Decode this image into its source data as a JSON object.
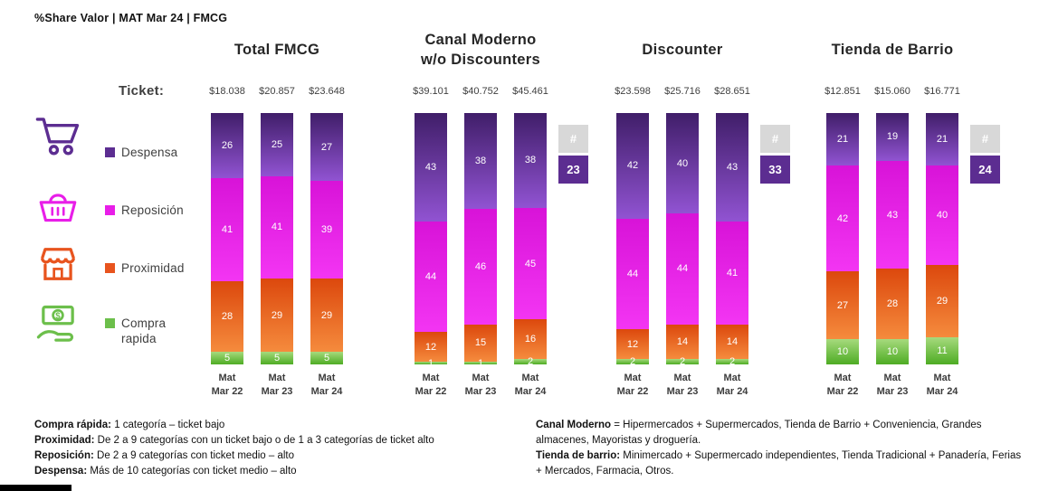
{
  "header": {
    "title": "%Share Valor |  MAT Mar 24 | FMCG"
  },
  "ticket_label": "Ticket:",
  "legend": {
    "items": [
      {
        "key": "despensa",
        "label": "Despensa",
        "icon": "cart-icon"
      },
      {
        "key": "reposicion",
        "label": "Reposición",
        "icon": "basket-icon"
      },
      {
        "key": "proximidad",
        "label": "Proximidad",
        "icon": "store-icon"
      },
      {
        "key": "compra_rapida",
        "label": "Compra rapida",
        "icon": "money-hand-icon"
      }
    ]
  },
  "colors": {
    "despensa": {
      "top": "#401E69",
      "bottom": "#9153D2",
      "legend": "#5C2D91"
    },
    "reposicion": {
      "top": "#D813D8",
      "bottom": "#F335F3",
      "legend": "#E81EE8"
    },
    "proximidad": {
      "top": "#DC480D",
      "bottom": "#F58B3D",
      "legend": "#E8541E"
    },
    "compra_rapida": {
      "top": "#A6DA7D",
      "bottom": "#4EAC24",
      "legend": "#6CBF4B"
    },
    "badge_gray": "#D8D8D8",
    "badge_purple": "#5C2D91"
  },
  "chart_data": {
    "type": "bar",
    "stacked": true,
    "unit": "% share valor",
    "ylim": [
      0,
      100
    ],
    "segments_bottom_to_top": [
      "compra_rapida",
      "proximidad",
      "reposicion",
      "despensa"
    ],
    "segment_labels": {
      "despensa": "Despensa",
      "reposicion": "Reposición",
      "proximidad": "Proximidad",
      "compra_rapida": "Compra rapida"
    },
    "categories": [
      {
        "line1": "Mat",
        "line2": "Mar 22"
      },
      {
        "line1": "Mat",
        "line2": "Mar 23"
      },
      {
        "line1": "Mat",
        "line2": "Mar 24"
      }
    ],
    "groups": [
      {
        "title_lines": [
          "Total FMCG"
        ],
        "tickets": [
          "$18.038",
          "$20.857",
          "$23.648"
        ],
        "values": {
          "despensa": [
            26,
            25,
            27
          ],
          "reposicion": [
            41,
            41,
            39
          ],
          "proximidad": [
            28,
            29,
            29
          ],
          "compra_rapida": [
            5,
            5,
            5
          ]
        },
        "badge": null
      },
      {
        "title_lines": [
          "Canal Moderno",
          "w/o Discounters"
        ],
        "tickets": [
          "$39.101",
          "$40.752",
          "$45.461"
        ],
        "values": {
          "despensa": [
            43,
            38,
            38
          ],
          "reposicion": [
            44,
            46,
            45
          ],
          "proximidad": [
            12,
            15,
            16
          ],
          "compra_rapida": [
            1,
            1,
            2
          ]
        },
        "badge": {
          "hash": "#",
          "value": "23"
        }
      },
      {
        "title_lines": [
          "Discounter"
        ],
        "tickets": [
          "$23.598",
          "$25.716",
          "$28.651"
        ],
        "values": {
          "despensa": [
            42,
            40,
            43
          ],
          "reposicion": [
            44,
            44,
            41
          ],
          "proximidad": [
            12,
            14,
            14
          ],
          "compra_rapida": [
            2,
            2,
            2
          ]
        },
        "badge": {
          "hash": "#",
          "value": "33"
        }
      },
      {
        "title_lines": [
          "Tienda de Barrio"
        ],
        "tickets": [
          "$12.851",
          "$15.060",
          "$16.771"
        ],
        "values": {
          "despensa": [
            21,
            19,
            21
          ],
          "reposicion": [
            42,
            43,
            40
          ],
          "proximidad": [
            27,
            28,
            29
          ],
          "compra_rapida": [
            10,
            10,
            11
          ]
        },
        "badge": {
          "hash": "#",
          "value": "24"
        }
      }
    ]
  },
  "footnotes": {
    "left": [
      {
        "bold": "Compra rápida:",
        "text": " 1 categoría – ticket bajo"
      },
      {
        "bold": "Proximidad:",
        "text": " De 2 a 9 categorías con un ticket bajo o de 1 a 3 categorías de ticket alto"
      },
      {
        "bold": "Reposición:",
        "text": " De 2 a 9 categorías con ticket medio – alto"
      },
      {
        "bold": "Despensa:",
        "text": " Más de 10 categorías con ticket medio – alto"
      }
    ],
    "right": [
      {
        "bold": "Canal Moderno",
        "text": " = Hipermercados + Supermercados, Tienda de Barrio + Conveniencia, Grandes almacenes, Mayoristas y droguería."
      },
      {
        "bold": "Tienda de barrio:",
        "text": " Minimercado + Supermercado independientes,  Tienda Tradicional + Panadería, Ferias + Mercados, Farmacia, Otros."
      }
    ]
  }
}
